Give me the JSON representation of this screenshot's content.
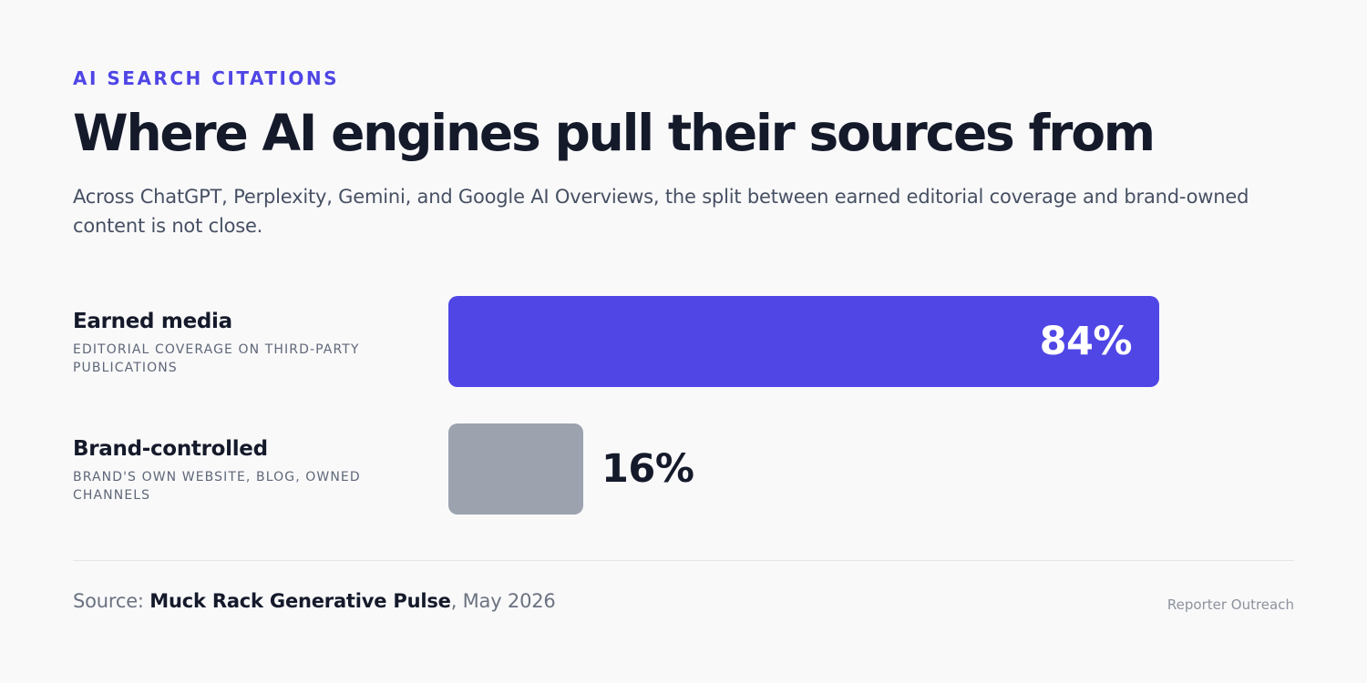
{
  "header": {
    "eyebrow": "AI SEARCH CITATIONS",
    "title": "Where AI engines pull their sources from",
    "subtitle": "Across ChatGPT, Perplexity, Gemini, and Google AI Overviews, the split between earned editorial coverage and brand-owned content is not close."
  },
  "rows": [
    {
      "name": "Earned media",
      "description": "Editorial coverage on third-party publications",
      "value_label": "84%"
    },
    {
      "name": "Brand-controlled",
      "description": "Brand's own website, blog, owned channels",
      "value_label": "16%"
    }
  ],
  "colors": {
    "accent": "#4f46e5",
    "muted_bar": "#9ca3af",
    "text_dark": "#151a2b"
  },
  "footer": {
    "source_prefix": "Source: ",
    "source_name": "Muck Rack Generative Pulse",
    "source_suffix": ", May 2026",
    "brand": "Reporter Outreach"
  },
  "chart_data": {
    "type": "bar",
    "orientation": "horizontal",
    "categories": [
      "Earned media",
      "Brand-controlled"
    ],
    "values": [
      84,
      16
    ],
    "unit": "%",
    "title": "Where AI engines pull their sources from",
    "colors": [
      "#4f46e5",
      "#9ca3af"
    ],
    "grid": false,
    "legend": "none"
  }
}
